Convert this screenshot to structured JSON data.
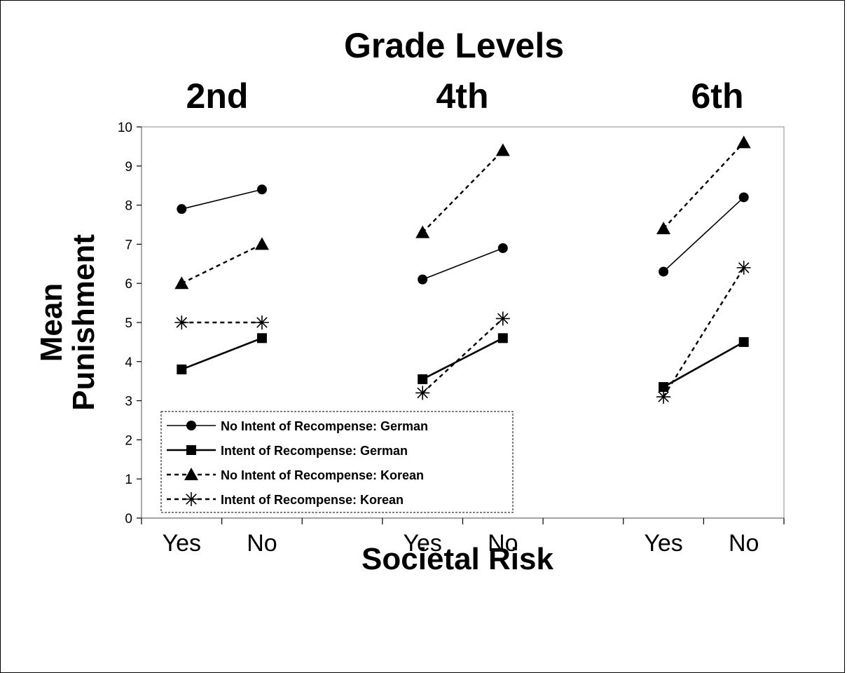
{
  "chart_data": {
    "type": "line",
    "title": "Grade Levels",
    "groups": [
      "2nd",
      "4th",
      "6th"
    ],
    "xlabel": "Societal Risk",
    "ylabel_lines": [
      "Mean",
      "Punishment"
    ],
    "tick_labels": [
      "Yes",
      "No",
      "Yes",
      "No",
      "Yes",
      "No"
    ],
    "ylim": [
      0,
      10
    ],
    "yticks": [
      0,
      1,
      2,
      3,
      4,
      5,
      6,
      7,
      8,
      9,
      10
    ],
    "grid": false,
    "legend_position": "bottom-left",
    "series": [
      {
        "name": "No Intent of Recompense: German",
        "marker": "circle",
        "dash": "solid",
        "thick": false,
        "values": [
          [
            7.9,
            8.4
          ],
          [
            6.1,
            6.9
          ],
          [
            6.3,
            8.2
          ]
        ]
      },
      {
        "name": "Intent of Recompense: German",
        "marker": "square",
        "dash": "solid",
        "thick": true,
        "values": [
          [
            3.8,
            4.6
          ],
          [
            3.55,
            4.6
          ],
          [
            3.35,
            4.5
          ]
        ]
      },
      {
        "name": "No Intent of Recompense: Korean",
        "marker": "triangle",
        "dash": "dashed",
        "thick": false,
        "values": [
          [
            6.0,
            7.0
          ],
          [
            7.3,
            9.4
          ],
          [
            7.4,
            9.6
          ]
        ]
      },
      {
        "name": "Intent of Recompense: Korean",
        "marker": "star",
        "dash": "dashed",
        "thick": false,
        "values": [
          [
            5.0,
            5.0
          ],
          [
            3.2,
            5.1
          ],
          [
            3.1,
            6.4
          ]
        ]
      }
    ]
  }
}
